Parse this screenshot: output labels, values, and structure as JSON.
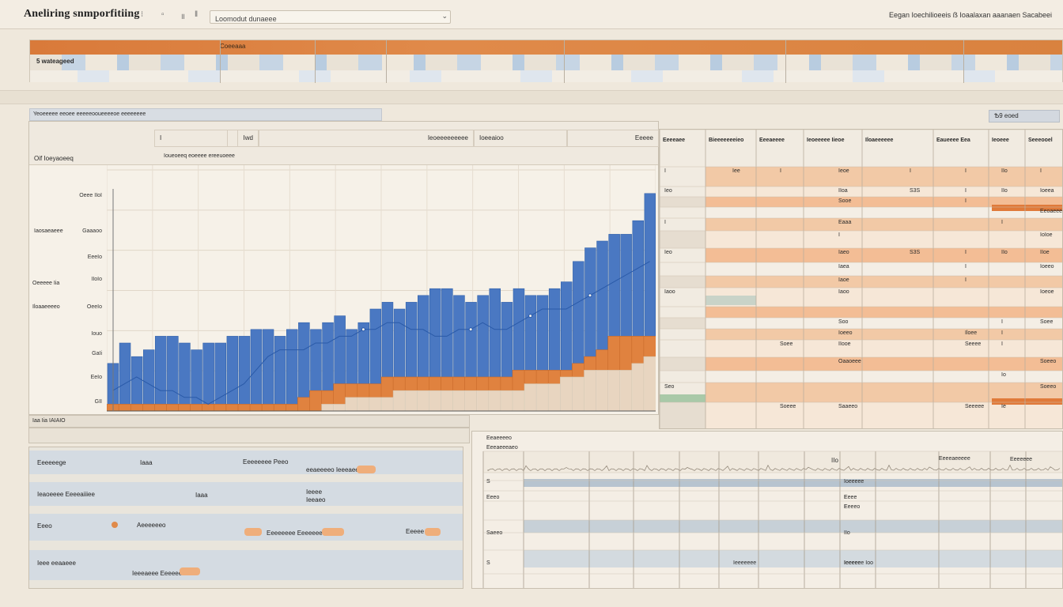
{
  "app": {
    "title": "Aneliring snmporfitiing"
  },
  "toolbar": {
    "search_value": "Loomodut dunaeee",
    "right_text": "Eegan Ioechilioeeis  ẞ  Ioaalaxan aaanaen  Sacabeei"
  },
  "ribbon": {
    "row_label": "5 wateageed",
    "label_a": "Coeeaaa"
  },
  "section": {
    "title": "Yeoeeeee eeoee eeeeeooueeeeoe eeeeeeee",
    "chip": "Ѣ9 eoed"
  },
  "chart": {
    "header": {
      "cell1": "I",
      "cell2": "Iwd",
      "cell3": "Ieoeeeeeeeee",
      "cell4": "Ioeeaioo",
      "cell5": "Eeeee"
    },
    "subheader": {
      "left": "Oif Ioeyaoeeq",
      "mid": "Ioueoeeq eoeeee ereeuoeee"
    },
    "ylabels": [
      "Oeee IIoI",
      "Gaaaoo",
      "EeeIo",
      "IIoIo",
      "OeeIo",
      "Iouo",
      "GaIi",
      "EeIo",
      "GII"
    ],
    "left_labels": [
      "Iaosaeaeee",
      "Oeeeee Iia",
      "Iloaaeeeeo"
    ],
    "xlabel": "Iaa  Iia  IAIAIO"
  },
  "chart_data": {
    "type": "bar",
    "series": [
      {
        "name": "blue",
        "values": [
          7,
          10,
          8,
          9,
          11,
          11,
          10,
          9,
          10,
          10,
          11,
          11,
          12,
          12,
          11,
          12,
          13,
          12,
          13,
          14,
          12,
          13,
          15,
          16,
          15,
          16,
          17,
          18,
          18,
          17,
          16,
          17,
          18,
          16,
          18,
          17,
          17,
          18,
          19,
          22,
          24,
          25,
          26,
          26,
          28,
          32
        ]
      },
      {
        "name": "orange",
        "values": [
          1,
          1,
          1,
          1,
          1,
          1,
          1,
          1,
          1,
          1,
          1,
          1,
          1,
          1,
          1,
          1,
          2,
          3,
          3,
          4,
          4,
          4,
          4,
          5,
          5,
          5,
          5,
          5,
          5,
          5,
          5,
          5,
          5,
          5,
          6,
          6,
          6,
          6,
          6,
          7,
          8,
          9,
          11,
          11,
          11,
          11
        ]
      },
      {
        "name": "beige",
        "values": [
          0,
          0,
          0,
          0,
          0,
          0,
          0,
          0,
          0,
          0,
          0,
          0,
          0,
          0,
          0,
          0,
          0,
          0,
          1,
          1,
          2,
          2,
          2,
          2,
          3,
          3,
          3,
          3,
          3,
          3,
          3,
          3,
          3,
          3,
          3,
          4,
          4,
          4,
          5,
          5,
          6,
          6,
          6,
          6,
          7,
          8
        ]
      }
    ],
    "line": [
      3,
      4,
      5,
      4,
      3,
      3,
      2,
      2,
      1,
      2,
      3,
      4,
      6,
      8,
      9,
      9,
      9,
      10,
      10,
      11,
      11,
      12,
      12,
      13,
      13,
      12,
      12,
      11,
      11,
      12,
      12,
      13,
      12,
      12,
      13,
      14,
      15,
      15,
      15,
      16,
      17,
      18,
      19,
      20,
      21,
      22
    ],
    "ylim": [
      0,
      35
    ],
    "grid": true
  },
  "table": {
    "headers": [
      "Eeeeaee",
      "Bieeeeeeeieo",
      "Eeeaeeee",
      "Ieoeeeee Iieoe",
      "Iloaeeeeee",
      "Eaueeee Eea",
      "Ieoeee",
      "Seeeooel"
    ],
    "rows": [
      [
        "I",
        "Iee",
        "I",
        "Ieoe",
        "I",
        "I",
        "IIo",
        "I"
      ],
      [
        "Ieo",
        "",
        "",
        "IIoa",
        "S3S",
        "I",
        "IIo",
        "Ioeea"
      ],
      [
        "",
        "",
        "",
        "Sooe",
        "",
        "I",
        "",
        ""
      ],
      [
        "",
        "",
        "",
        "",
        "",
        "",
        "",
        "Eeoaeeee"
      ],
      [
        "I",
        "",
        "",
        "Eaaa",
        "",
        "",
        "I",
        ""
      ],
      [
        "",
        "",
        "",
        "I",
        "",
        "",
        "",
        "IoIoe"
      ],
      [
        "Ieo",
        "",
        "",
        "Iaeo",
        "S3S",
        "I",
        "IIo",
        "IIoe"
      ],
      [
        "",
        "",
        "",
        "Iaea",
        "",
        "I",
        "",
        "Ioeeo"
      ],
      [
        "",
        "",
        "",
        "Iaoe",
        "",
        "I",
        "",
        ""
      ],
      [
        "Iaoo",
        "",
        "",
        "Iaoo",
        "",
        "",
        "",
        "Ioeoe"
      ],
      [
        "",
        "",
        "",
        "",
        "",
        "",
        "",
        ""
      ],
      [
        "",
        "",
        "",
        "Soo",
        "",
        "",
        "I",
        "Soee"
      ],
      [
        "",
        "",
        "",
        "Ioeeo",
        "",
        "Iloee",
        "I",
        ""
      ],
      [
        "",
        "",
        "Soee",
        "IIooe",
        "",
        "Seeee",
        "I",
        ""
      ],
      [
        "",
        "",
        "",
        "Oaaoeee",
        "",
        "",
        "",
        "Soeeo"
      ],
      [
        "",
        "",
        "",
        "",
        "",
        "",
        "Io",
        ""
      ],
      [
        "Seo",
        "",
        "",
        "",
        "",
        "",
        "",
        "Soeeo"
      ],
      [
        "",
        "",
        "Soeee",
        "Saaeeo",
        "",
        "Seeeee",
        "Ie",
        ""
      ]
    ]
  },
  "lowerleft": {
    "rows": [
      {
        "label": "Eeeeeege",
        "c1": "Iaaa",
        "c2": "Eeeeeeee Peeo",
        "c3": "eeaeeeeo Ieeeaeeeeo"
      },
      {
        "label": "Ieaoeeee Eeeeaiiiee",
        "c1": "Iaaa",
        "c2": "Ieeee",
        "c3": "Ieeaeo"
      },
      {
        "label": "Eeeo",
        "c1": "Aeeeeeeo",
        "c2": "Eeeeeeee Eeeeeeeeo",
        "c3": "Eeeee"
      },
      {
        "label": "Ieee eeaaeee",
        "c1": "Ieeeaeee Eeeeeeeo",
        "c2": "",
        "c3": ""
      }
    ]
  },
  "lowerright": {
    "title": "Eeaeeeeo",
    "subtitle": "Eeeaeeeaeo",
    "head": [
      "IIo",
      "Eeeeaeeeee",
      "Eeeeeee"
    ],
    "rows": [
      [
        "S",
        "",
        "",
        "Ioeeeee"
      ],
      [
        "Eeeo",
        "",
        "I",
        "Eeee"
      ],
      [
        "",
        "",
        "I",
        "Eeeeo"
      ],
      [
        "Saeeo",
        "",
        "",
        "IIo"
      ],
      [
        "S",
        "Ieeeeeee",
        "Ieeeee",
        "Ieeeeee Ioo"
      ]
    ]
  }
}
